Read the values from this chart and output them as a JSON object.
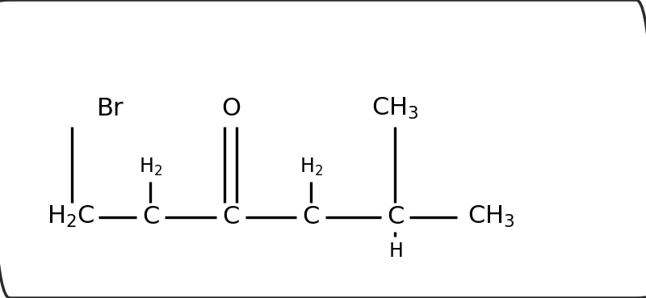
{
  "background_color": "#ffffff",
  "border_color": "#2b2b2b",
  "bond_color": "#000000",
  "fig_width": 8.0,
  "fig_height": 3.69,
  "xlim": [
    0.0,
    8.0
  ],
  "ylim": [
    -0.5,
    2.2
  ],
  "backbone_y": 0.0,
  "above_h2_y": 0.62,
  "above_top_y": 1.35,
  "below_h_y": -0.42,
  "atoms_x": [
    0.85,
    1.85,
    2.85,
    3.85,
    4.9,
    6.1
  ],
  "atoms_labels": [
    "H_2C",
    "C",
    "C",
    "C",
    "C",
    "CH_3"
  ],
  "half_w": [
    0.3,
    0.13,
    0.13,
    0.13,
    0.13,
    0.38
  ],
  "br_x": 1.35,
  "br_y": 1.35,
  "o_x": 2.85,
  "o_y": 1.35,
  "ch3_top_x": 4.9,
  "ch3_top_y": 1.35,
  "h2_above_c1_x": 1.85,
  "h2_above_c3_x": 3.85,
  "h_below_c4_x": 4.9,
  "bond_lw": 2.4,
  "fs_main": 22,
  "fs_sub": 17
}
